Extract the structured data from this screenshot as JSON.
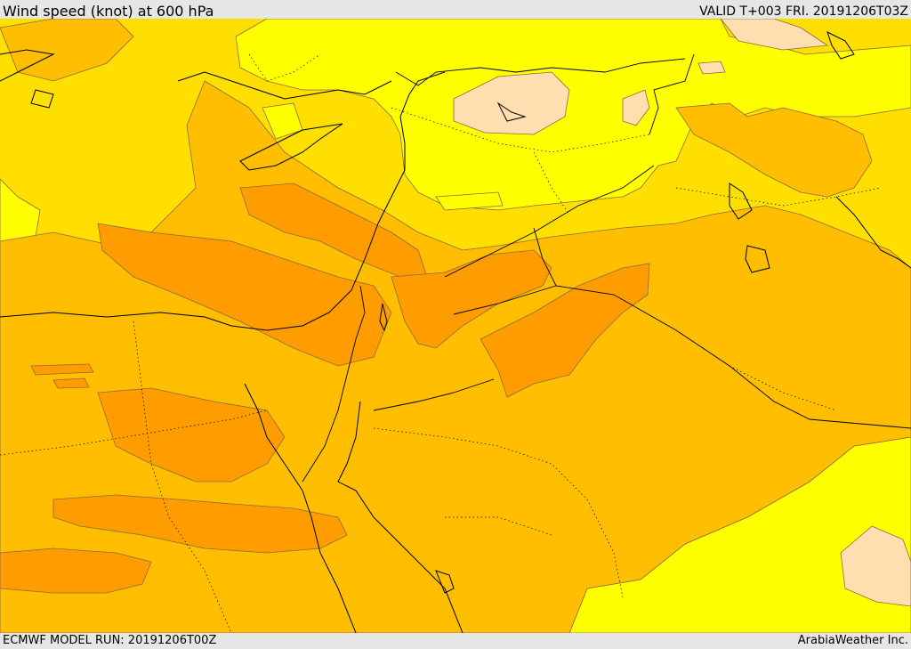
{
  "header": {
    "title": "Wind speed (knot) at 600 hPa",
    "valid_time": "VALID T+003 FRI. 20191206T03Z"
  },
  "footer": {
    "model_run": "ECMWF MODEL RUN: 20191206T00Z",
    "credit": "ArabiaWeather Inc."
  },
  "map": {
    "fill_colors": {
      "lightest": "#ffdeb0",
      "light": "#ffff00",
      "medium": "#ffdf00",
      "strong": "#ffbe00",
      "strongest": "#ff9d00"
    },
    "contour_color": "#8c6a3c",
    "coastline_color": "#000000",
    "border_style": "dotted"
  }
}
